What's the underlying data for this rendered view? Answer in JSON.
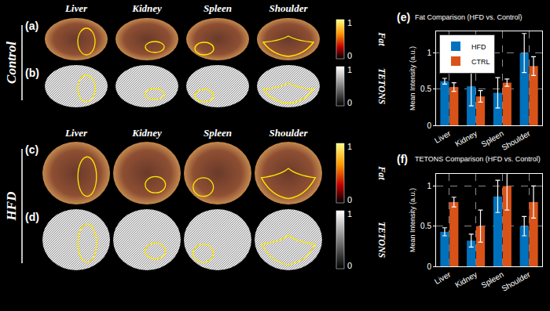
{
  "chart_data": [
    {
      "type": "bar",
      "panel": "(e)",
      "title": "Fat Comparison (HFD vs. Control)",
      "y_label": "Mean Intensity (a.u.)",
      "categories": [
        "Liver",
        "Kidney",
        "Spleen",
        "Shoulder"
      ],
      "series": [
        {
          "name": "HFD",
          "color": "#0072BD",
          "values": [
            0.61,
            0.54,
            0.45,
            1.0
          ],
          "errors": [
            0.04,
            0.27,
            0.21,
            0.27
          ]
        },
        {
          "name": "CTRL",
          "color": "#D95319",
          "values": [
            0.53,
            0.4,
            0.59,
            0.82
          ],
          "errors": [
            0.06,
            0.08,
            0.05,
            0.13
          ]
        }
      ],
      "ylim": [
        0,
        1.3
      ],
      "yticks": [
        0,
        0.5,
        1
      ],
      "grid": true,
      "legend": "top left"
    },
    {
      "type": "bar",
      "panel": "(f)",
      "title": "TETONS Comparison (HFD vs. Control)",
      "y_label": "Mean Intensity (a.u.)",
      "categories": [
        "Liver",
        "Kidney",
        "Spleen",
        "Shoulder"
      ],
      "series": [
        {
          "name": "HFD",
          "color": "#0072BD",
          "values": [
            0.43,
            0.32,
            0.87,
            0.5
          ],
          "errors": [
            0.05,
            0.08,
            0.2,
            0.12
          ]
        },
        {
          "name": "CTRL",
          "color": "#D95319",
          "values": [
            0.8,
            0.5,
            1.0,
            0.8
          ],
          "errors": [
            0.06,
            0.2,
            0.3,
            0.2
          ]
        }
      ],
      "ylim": [
        0,
        1.15
      ],
      "yticks": [
        0,
        0.5,
        1
      ],
      "grid": true
    }
  ],
  "image_panels": {
    "organs": [
      "Liver",
      "Kidney",
      "Spleen",
      "Shoulder"
    ],
    "colorbar_ticks": [
      1,
      0
    ],
    "groups": [
      {
        "name": "Control",
        "rows": [
          {
            "label": "(a)",
            "colorbar": "Fat"
          },
          {
            "label": "(b)",
            "colorbar": "TETONS"
          }
        ]
      },
      {
        "name": "HFD",
        "rows": [
          {
            "label": "(c)",
            "colorbar": "Fat"
          },
          {
            "label": "(d)",
            "colorbar": "TETONS"
          }
        ]
      }
    ]
  }
}
